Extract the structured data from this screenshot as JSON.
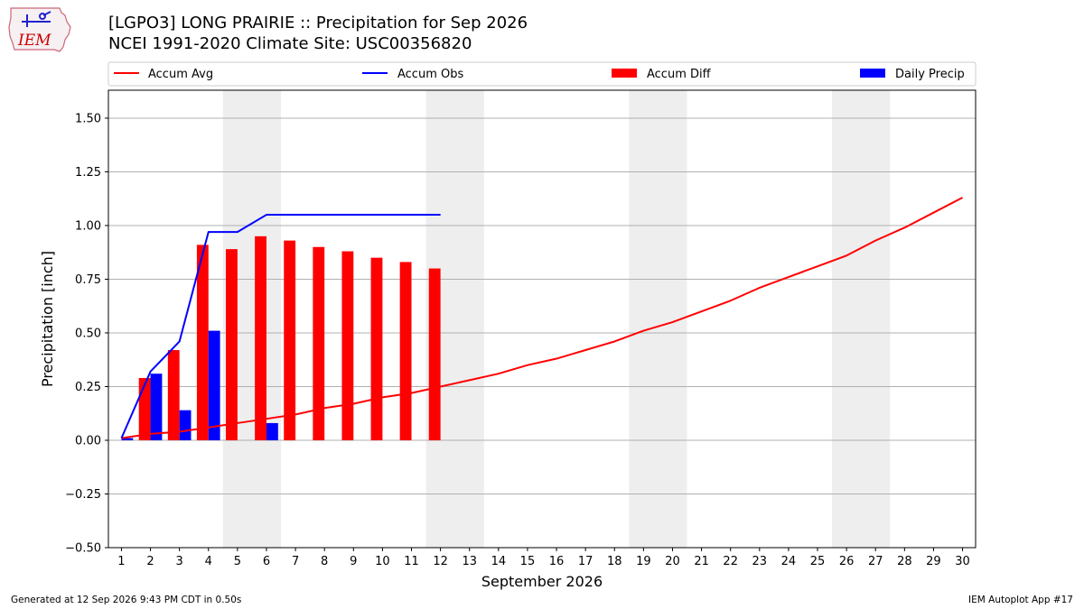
{
  "title_line1": "[LGPO3] LONG PRAIRIE :: Precipitation for Sep 2026",
  "title_line2": "NCEI 1991-2020 Climate Site: USC00356820",
  "logo_text": "IEM",
  "footer_left": "Generated at 12 Sep 2026 9:43 PM CDT in 0.50s",
  "footer_right": "IEM Autoplot App #17",
  "colors": {
    "avg": "#ff0000",
    "obs": "#0000ff",
    "diff": "#ff0000",
    "daily": "#0000ff",
    "weekend": "#eeeeee",
    "grid": "#b0b0b0",
    "logo": "#2222cc",
    "logo_text": "#cc0000"
  },
  "chart_data": {
    "type": "bar",
    "xlabel": "September 2026",
    "ylabel": "Precipitation [inch]",
    "xlim": [
      0.55,
      30.45
    ],
    "ylim": [
      -0.5,
      1.63
    ],
    "yticks": [
      -0.5,
      -0.25,
      0.0,
      0.25,
      0.5,
      0.75,
      1.0,
      1.25,
      1.5
    ],
    "ytick_labels": [
      "−0.50",
      "−0.25",
      "0.00",
      "0.25",
      "0.50",
      "0.75",
      "1.00",
      "1.25",
      "1.50"
    ],
    "xticks": [
      1,
      2,
      3,
      4,
      5,
      6,
      7,
      8,
      9,
      10,
      11,
      12,
      13,
      14,
      15,
      16,
      17,
      18,
      19,
      20,
      21,
      22,
      23,
      24,
      25,
      26,
      27,
      28,
      29,
      30
    ],
    "xtick_labels": [
      "1",
      "2",
      "3",
      "4",
      "5",
      "6",
      "7",
      "8",
      "9",
      "10",
      "11",
      "12",
      "13",
      "14",
      "15",
      "16",
      "17",
      "18",
      "19",
      "20",
      "21",
      "22",
      "23",
      "24",
      "25",
      "26",
      "27",
      "28",
      "29",
      "30"
    ],
    "grid": "horizontal",
    "legend_position": "top",
    "legend": [
      "Accum Avg",
      "Accum Obs",
      "Accum Diff",
      "Daily Precip"
    ],
    "weekend_spans": [
      [
        4.5,
        6.5
      ],
      [
        11.5,
        13.5
      ],
      [
        18.5,
        20.5
      ],
      [
        25.5,
        27.5
      ]
    ],
    "series": [
      {
        "name": "Accum Avg",
        "kind": "line",
        "x": [
          1,
          2,
          3,
          4,
          5,
          6,
          7,
          8,
          9,
          10,
          11,
          12,
          13,
          14,
          15,
          16,
          17,
          18,
          19,
          20,
          21,
          22,
          23,
          24,
          25,
          26,
          27,
          28,
          29,
          30
        ],
        "values": [
          0.01,
          0.03,
          0.04,
          0.06,
          0.08,
          0.1,
          0.12,
          0.15,
          0.17,
          0.2,
          0.22,
          0.25,
          0.28,
          0.31,
          0.35,
          0.38,
          0.42,
          0.46,
          0.51,
          0.55,
          0.6,
          0.65,
          0.71,
          0.76,
          0.81,
          0.86,
          0.93,
          0.99,
          1.06,
          1.13
        ]
      },
      {
        "name": "Accum Obs",
        "kind": "line",
        "x": [
          1,
          2,
          3,
          4,
          5,
          6,
          7,
          8,
          9,
          10,
          11,
          12
        ],
        "values": [
          0.01,
          0.32,
          0.46,
          0.97,
          0.97,
          1.05,
          1.05,
          1.05,
          1.05,
          1.05,
          1.05,
          1.05
        ]
      },
      {
        "name": "Accum Diff",
        "kind": "bar",
        "x": [
          1,
          2,
          3,
          4,
          5,
          6,
          7,
          8,
          9,
          10,
          11,
          12
        ],
        "values": [
          0.0,
          0.29,
          0.42,
          0.91,
          0.89,
          0.95,
          0.93,
          0.9,
          0.88,
          0.85,
          0.83,
          0.8
        ]
      },
      {
        "name": "Daily Precip",
        "kind": "bar",
        "x": [
          1,
          2,
          3,
          4,
          5,
          6,
          7,
          8,
          9,
          10,
          11,
          12
        ],
        "values": [
          0.01,
          0.31,
          0.14,
          0.51,
          0.0,
          0.08,
          0.0,
          0.0,
          0.0,
          0.0,
          0.0,
          0.0
        ]
      }
    ]
  }
}
